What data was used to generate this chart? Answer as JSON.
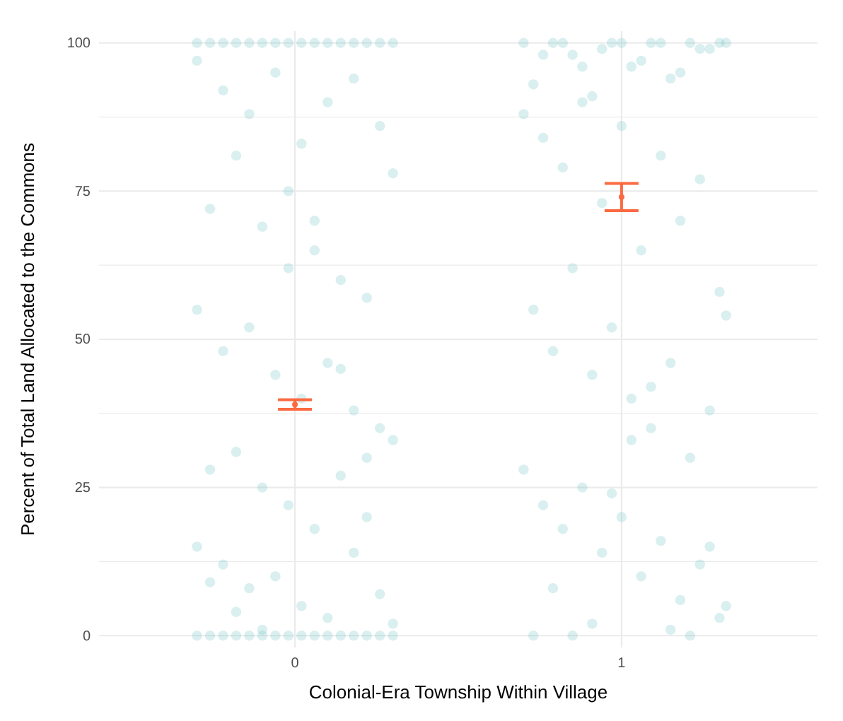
{
  "chart_data": {
    "type": "scatter",
    "xlabel": "Colonial-Era Township Within Village",
    "ylabel": "Percent of Total Land Allocated to the Commons",
    "xlim": [
      -0.6,
      1.6
    ],
    "xticks": [
      0,
      1
    ],
    "ylim": [
      -2,
      102
    ],
    "yticks": [
      0,
      25,
      50,
      75,
      100
    ],
    "grid": true,
    "marker": "circle",
    "series": [
      {
        "color": "#6cc0c0",
        "x": [
          -0.3,
          -0.22,
          -0.14,
          -0.06,
          0.02,
          0.1,
          0.18,
          0.26,
          0.3,
          -0.26,
          -0.18,
          -0.1,
          -0.02,
          0.06,
          0.14,
          0.22,
          -0.3,
          -0.22,
          -0.14,
          -0.06,
          0.02,
          0.1,
          0.18,
          0.26,
          0.3,
          -0.26,
          -0.18,
          -0.1,
          -0.02,
          0.06,
          0.14,
          0.22,
          -0.3,
          -0.22,
          -0.14,
          -0.06,
          0.02,
          0.1,
          0.18,
          0.26,
          0.3,
          -0.26,
          -0.18,
          -0.1,
          -0.02,
          0.06,
          0.14,
          0.22,
          -0.3,
          -0.22,
          -0.14,
          -0.06,
          0.02,
          0.1,
          0.18,
          0.26,
          0.3,
          -0.26,
          -0.18,
          -0.1,
          -0.02,
          0.06,
          0.14,
          0.22,
          -0.3,
          -0.22,
          -0.14,
          -0.06,
          0.02,
          0.1,
          0.18,
          0.26,
          0.3,
          -0.26,
          -0.18,
          -0.1,
          -0.02,
          0.06,
          0.14,
          0.22
        ],
        "values": [
          100,
          100,
          100,
          100,
          100,
          100,
          100,
          100,
          100,
          100,
          100,
          100,
          100,
          100,
          100,
          100,
          0,
          0,
          0,
          0,
          0,
          0,
          0,
          0,
          0,
          0,
          0,
          0,
          0,
          0,
          0,
          0,
          97,
          92,
          88,
          95,
          83,
          90,
          94,
          86,
          78,
          72,
          81,
          69,
          75,
          65,
          60,
          57,
          55,
          48,
          52,
          44,
          40,
          46,
          38,
          35,
          33,
          28,
          31,
          25,
          22,
          18,
          27,
          20,
          15,
          12,
          8,
          10,
          5,
          3,
          14,
          7,
          2,
          9,
          4,
          1,
          62,
          70,
          45,
          30
        ]
      },
      {
        "color": "#6cc0c0",
        "x": [
          0.7,
          0.76,
          0.82,
          0.88,
          0.94,
          1.0,
          1.06,
          1.12,
          1.18,
          1.24,
          1.3,
          0.73,
          0.79,
          0.85,
          0.91,
          0.97,
          1.03,
          1.09,
          1.15,
          1.21,
          1.27,
          1.32,
          0.7,
          0.76,
          0.82,
          0.88,
          0.94,
          1.0,
          1.06,
          1.12,
          1.18,
          1.24,
          1.3,
          0.73,
          0.79,
          0.85,
          0.91,
          0.97,
          1.03,
          1.09,
          1.15,
          1.21,
          1.27,
          1.32,
          0.7,
          0.76,
          0.82,
          0.88,
          0.94,
          1.0,
          1.06,
          1.12,
          1.18,
          1.24,
          1.3,
          0.73,
          0.79,
          0.85,
          0.91,
          0.97,
          1.03,
          1.09,
          1.15,
          1.21,
          1.27,
          1.32
        ],
        "values": [
          100,
          98,
          100,
          96,
          99,
          100,
          97,
          100,
          95,
          99,
          100,
          93,
          100,
          98,
          91,
          100,
          96,
          100,
          94,
          100,
          99,
          100,
          88,
          84,
          79,
          90,
          73,
          86,
          65,
          81,
          70,
          77,
          58,
          55,
          48,
          62,
          44,
          52,
          40,
          35,
          46,
          30,
          38,
          54,
          28,
          22,
          18,
          25,
          14,
          20,
          10,
          16,
          6,
          12,
          3,
          0,
          8,
          0,
          2,
          24,
          33,
          42,
          1,
          0,
          15,
          5
        ]
      },
      {
        "color": "#fc6a42",
        "x": [
          0,
          1
        ],
        "values": [
          39.0,
          74.0
        ],
        "errors": [
          0.8,
          2.3
        ]
      }
    ]
  }
}
